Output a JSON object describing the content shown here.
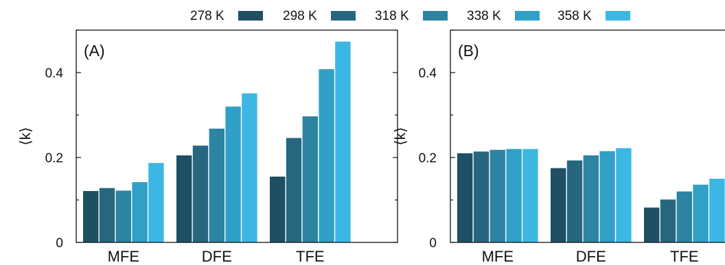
{
  "legend": {
    "entries": [
      "278 K",
      "298 K",
      "318 K",
      "338 K",
      "358 K"
    ],
    "placement": "top"
  },
  "colors": {
    "series": [
      "#1e4f63",
      "#26677f",
      "#2c83a2",
      "#30a0c6",
      "#3cb7e3"
    ]
  },
  "chart_data": [
    {
      "type": "bar",
      "panel_label": "(A)",
      "ylabel": "⟨k⟩",
      "xlabel": "",
      "categories": [
        "MFE",
        "DFE",
        "TFE"
      ],
      "ylim": [
        0,
        0.5
      ],
      "yticks": [
        0,
        0.2,
        0.4
      ],
      "ytick_labels": [
        "0",
        "0.2",
        "0.4"
      ],
      "series": [
        {
          "name": "278 K",
          "values": [
            0.121,
            0.205,
            0.155
          ]
        },
        {
          "name": "298 K",
          "values": [
            0.128,
            0.228,
            0.246
          ]
        },
        {
          "name": "318 K",
          "values": [
            0.122,
            0.268,
            0.297
          ]
        },
        {
          "name": "338 K",
          "values": [
            0.142,
            0.32,
            0.408
          ]
        },
        {
          "name": "358 K",
          "values": [
            0.187,
            0.351,
            0.473
          ]
        }
      ]
    },
    {
      "type": "bar",
      "panel_label": "(B)",
      "ylabel": "⟨k⟩",
      "xlabel": "",
      "categories": [
        "MFE",
        "DFE",
        "TFE"
      ],
      "ylim": [
        0,
        0.5
      ],
      "yticks": [
        0,
        0.2,
        0.4
      ],
      "ytick_labels": [
        "0",
        "0.2",
        "0.4"
      ],
      "series": [
        {
          "name": "278 K",
          "values": [
            0.21,
            0.175,
            0.082
          ]
        },
        {
          "name": "298 K",
          "values": [
            0.214,
            0.193,
            0.101
          ]
        },
        {
          "name": "318 K",
          "values": [
            0.218,
            0.205,
            0.12
          ]
        },
        {
          "name": "338 K",
          "values": [
            0.22,
            0.215,
            0.136
          ]
        },
        {
          "name": "358 K",
          "values": [
            0.22,
            0.222,
            0.15
          ]
        }
      ]
    }
  ]
}
